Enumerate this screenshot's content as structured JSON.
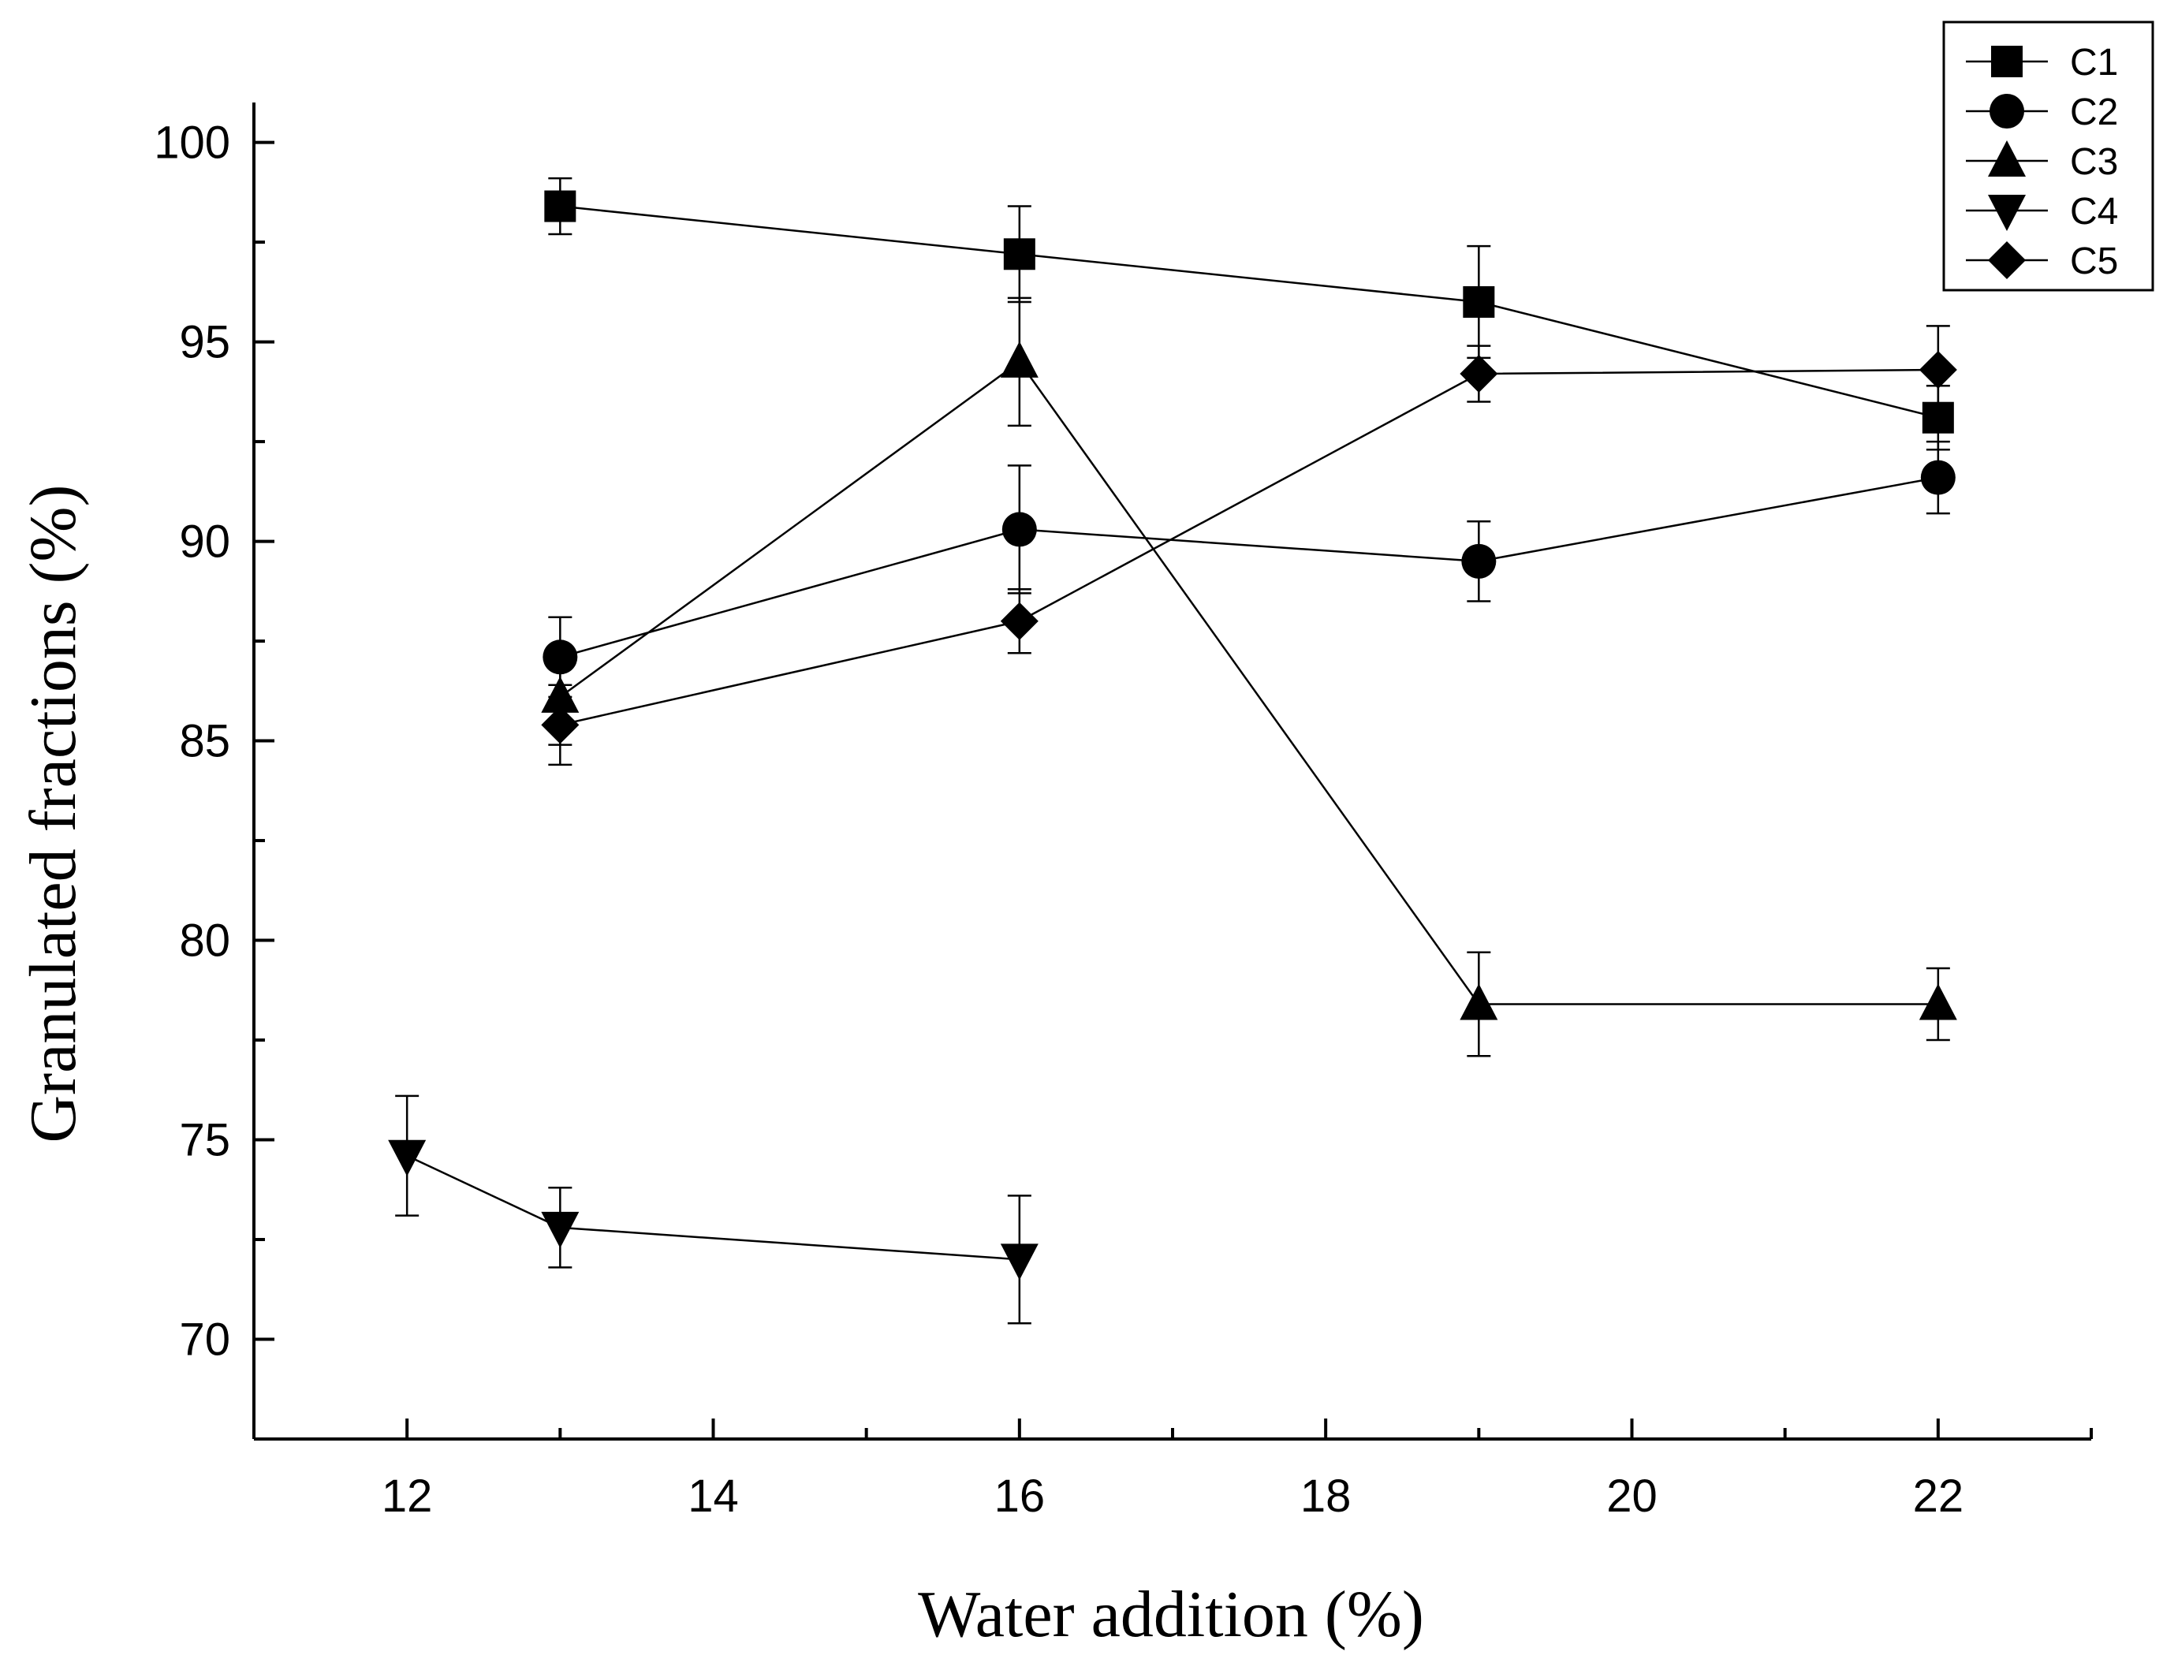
{
  "chart_data": {
    "type": "line",
    "title": "",
    "xlabel": "Water addition (%)",
    "ylabel": "Granulated fractions (%)",
    "xlim": [
      11,
      23
    ],
    "ylim": [
      67.5,
      101
    ],
    "x_ticks": [
      12,
      14,
      16,
      18,
      20,
      22
    ],
    "y_ticks": [
      70,
      75,
      80,
      85,
      90,
      95,
      100
    ],
    "legend_position": "top-right",
    "series": [
      {
        "name": "C1",
        "marker": "square",
        "points": [
          {
            "x": 13,
            "y": 98.4,
            "err": 0.7
          },
          {
            "x": 16,
            "y": 97.2,
            "err": 1.2
          },
          {
            "x": 19,
            "y": 96.0,
            "err": 1.4
          },
          {
            "x": 22,
            "y": 93.1,
            "err": 0.8
          }
        ]
      },
      {
        "name": "C2",
        "marker": "circle",
        "points": [
          {
            "x": 13,
            "y": 87.1,
            "err": 1.0
          },
          {
            "x": 16,
            "y": 90.3,
            "err": 1.6
          },
          {
            "x": 19,
            "y": 89.5,
            "err": 1.0
          },
          {
            "x": 22,
            "y": 91.6,
            "err": 0.9
          }
        ]
      },
      {
        "name": "C3",
        "marker": "triangle-up",
        "points": [
          {
            "x": 13,
            "y": 86.1,
            "err": 1.2
          },
          {
            "x": 16,
            "y": 94.5,
            "err": 1.6
          },
          {
            "x": 19,
            "y": 78.4,
            "err": 1.3
          },
          {
            "x": 22,
            "y": 78.4,
            "err": 0.9
          }
        ]
      },
      {
        "name": "C4",
        "marker": "triangle-down",
        "points": [
          {
            "x": 12,
            "y": 74.6,
            "err": 1.5
          },
          {
            "x": 13,
            "y": 72.8,
            "err": 1.0
          },
          {
            "x": 16,
            "y": 72.0,
            "err": 1.6
          }
        ]
      },
      {
        "name": "C5",
        "marker": "diamond",
        "points": [
          {
            "x": 13,
            "y": 85.4,
            "err": 1.0
          },
          {
            "x": 16,
            "y": 88.0,
            "err": 0.8
          },
          {
            "x": 19,
            "y": 94.2,
            "err": 0.7
          },
          {
            "x": 22,
            "y": 94.3,
            "err": 1.1
          }
        ]
      }
    ]
  }
}
